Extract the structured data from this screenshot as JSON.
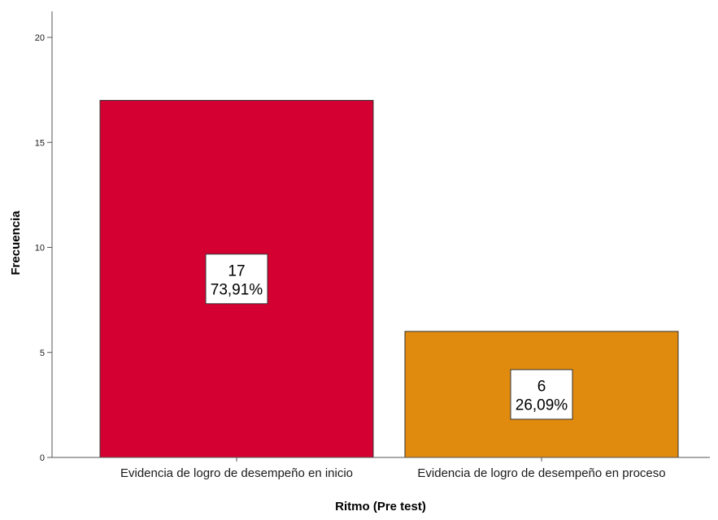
{
  "chart_data": {
    "type": "bar",
    "categories": [
      "Evidencia de logro de desempeño en inicio",
      "Evidencia de logro de desempeño en proceso"
    ],
    "values": [
      17,
      6
    ],
    "percent_labels": [
      "73,91%",
      "26,09%"
    ],
    "bar_colors": [
      "#d50032",
      "#e08a0e"
    ],
    "xlabel": "Ritmo (Pre test)",
    "ylabel": "Frecuencia",
    "ylim": [
      0,
      20
    ],
    "y_ticks": [
      "0",
      "5",
      "10",
      "15",
      "20"
    ],
    "grid": false,
    "legend": "none"
  }
}
